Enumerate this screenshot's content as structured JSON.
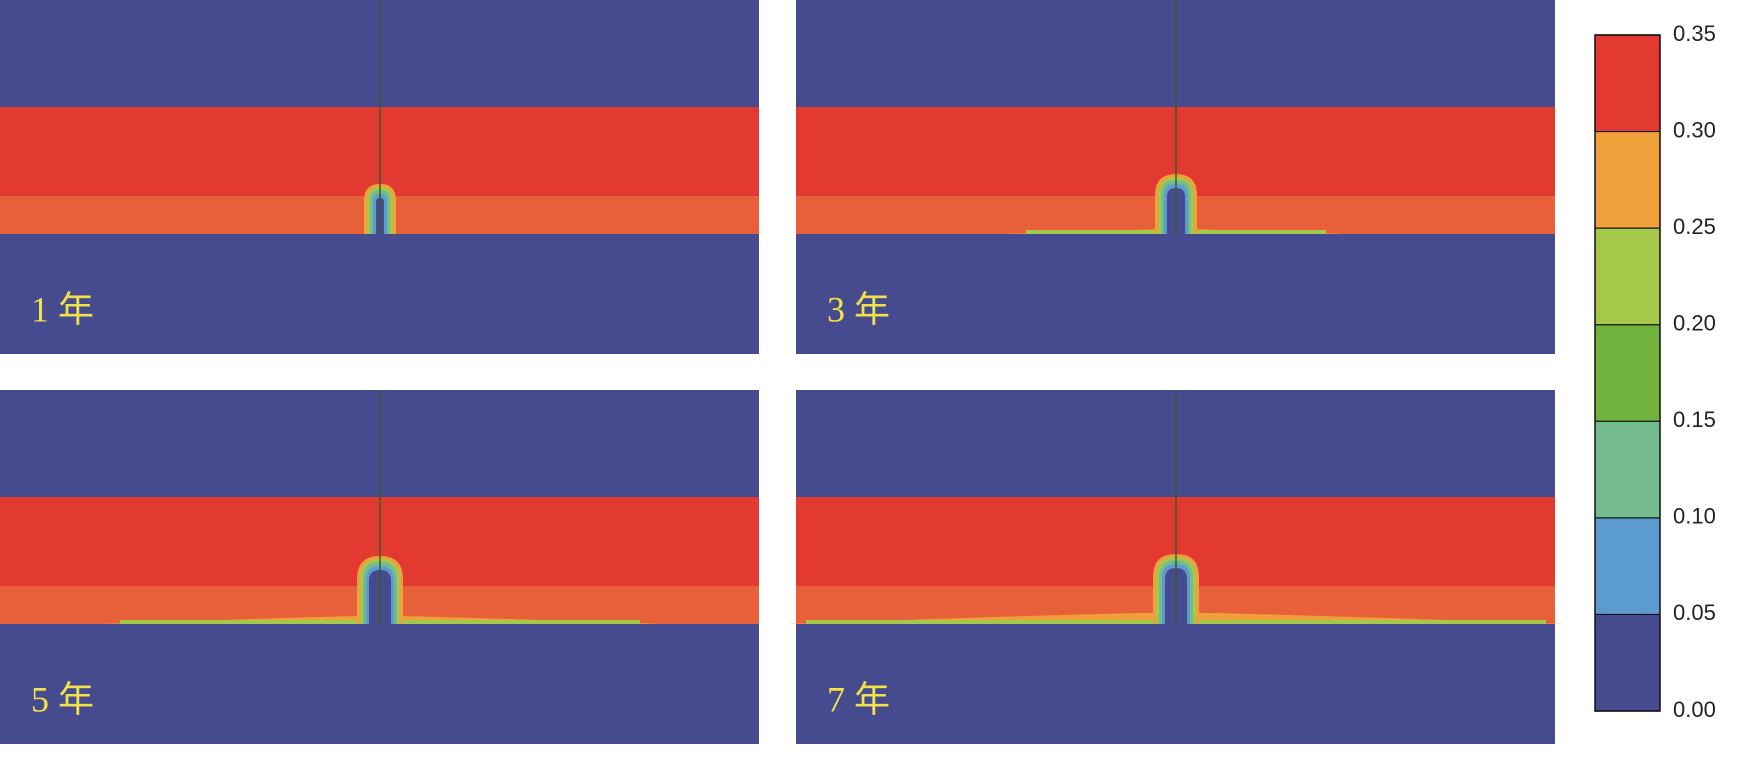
{
  "chart_data": {
    "type": "contour",
    "panels": [
      {
        "label": "1 年"
      },
      {
        "label": "3 年"
      },
      {
        "label": "5 年"
      },
      {
        "label": "7 年"
      }
    ],
    "levels": [
      {
        "value": 0,
        "label": "0.00"
      },
      {
        "value": 0.05,
        "label": "0.05"
      },
      {
        "value": 0.1,
        "label": "0.10"
      },
      {
        "value": 0.15,
        "label": "0.15"
      },
      {
        "value": 0.2,
        "label": "0.20"
      },
      {
        "value": 0.25,
        "label": "0.25"
      },
      {
        "value": 0.3,
        "label": "0.30"
      },
      {
        "value": 0.35,
        "label": "0.35"
      }
    ],
    "colors": [
      "#454b8e",
      "#5b9bd0",
      "#74bb8f",
      "#72b33e",
      "#a6c84a",
      "#f0a03a",
      "#e23a30"
    ]
  }
}
